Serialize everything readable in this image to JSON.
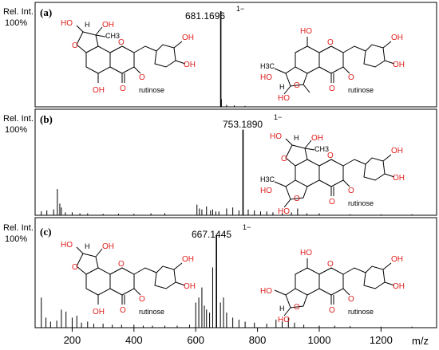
{
  "chart_data": [
    {
      "type": "bar",
      "panel_label": "(a)",
      "y_label": "Rel. Int.",
      "y_label_pct": "100%",
      "precursor_label": "681.1696",
      "charge": "1−",
      "x": [
        681.17,
        683.2,
        700,
        725,
        760
      ],
      "values": [
        100,
        8,
        2,
        1.5,
        1
      ],
      "precursor_mz": 681.17,
      "xlim": [
        80,
        1380
      ],
      "ylim": [
        0,
        100
      ]
    },
    {
      "type": "bar",
      "panel_label": "(b)",
      "y_label": "Rel. Int.",
      "y_label_pct": "100%",
      "precursor_label": "753.1890",
      "charge": "1−",
      "x": [
        100,
        118,
        140,
        152,
        160,
        165,
        178,
        200,
        225,
        250,
        300,
        350,
        400,
        455,
        500,
        604,
        612,
        620,
        635,
        648,
        655,
        665,
        675,
        700,
        720,
        740,
        753.19,
        770,
        790,
        810,
        830,
        850,
        880,
        910,
        930,
        960,
        1000,
        1100,
        1200,
        1300
      ],
      "values": [
        4,
        5,
        6,
        27,
        12,
        8,
        3,
        3,
        2,
        2,
        1.5,
        1.5,
        1.5,
        2,
        2,
        11,
        7,
        6,
        9,
        5,
        6,
        4,
        4,
        7,
        8,
        5,
        88,
        6,
        5,
        4,
        4,
        3,
        2,
        3,
        7,
        2,
        2,
        1,
        1,
        1
      ],
      "precursor_mz": 753.19,
      "xlim": [
        80,
        1380
      ],
      "ylim": [
        0,
        100
      ]
    },
    {
      "type": "bar",
      "panel_label": "(c)",
      "y_label": "Rel. Int.",
      "y_label_pct": "100%",
      "precursor_label": "667.1445",
      "charge": "1−",
      "x": [
        100,
        115,
        130,
        150,
        165,
        180,
        200,
        215,
        230,
        250,
        270,
        300,
        330,
        360,
        400,
        430,
        460,
        500,
        540,
        580,
        600,
        610,
        620,
        628,
        635,
        645,
        655,
        667.14,
        680,
        690,
        700,
        720,
        740,
        760,
        790,
        830,
        860,
        880,
        900,
        920,
        950,
        1000,
        1050,
        1100,
        1200,
        1300
      ],
      "values": [
        30,
        10,
        6,
        7,
        18,
        16,
        10,
        12,
        5,
        6,
        4,
        4,
        3,
        3,
        3,
        2,
        2,
        2,
        2,
        3,
        25,
        30,
        40,
        22,
        18,
        15,
        60,
        92,
        25,
        30,
        15,
        10,
        8,
        6,
        5,
        4,
        8,
        6,
        10,
        5,
        3,
        2,
        2,
        1.5,
        1,
        1
      ],
      "precursor_mz": 667.14,
      "xlim": [
        80,
        1380
      ],
      "ylim": [
        0,
        100
      ]
    }
  ],
  "x_axis": {
    "ticks": [
      200,
      400,
      600,
      800,
      1000,
      1200
    ],
    "tick_labels": [
      "200",
      "400",
      "600",
      "800",
      "1000",
      "1200"
    ],
    "label": "m/z"
  },
  "structures": {
    "substituent": "rutinose",
    "atom_oh": "OH",
    "atom_ho": "HO",
    "atom_o": "O",
    "atom_h": "H",
    "atom_ch3": "CH3",
    "atom_h3c": "H3C"
  },
  "colors": {
    "heteroatom": "#e0201e",
    "line": "#000000",
    "frame": "#000000"
  }
}
